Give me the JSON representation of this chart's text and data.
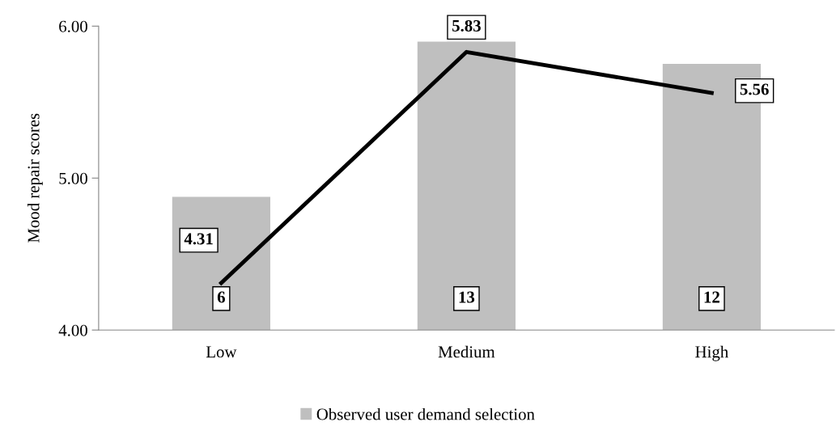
{
  "chart_data": {
    "type": "bar",
    "ylabel": "Mood repair scores",
    "categories": [
      "Low",
      "Medium",
      "High"
    ],
    "series": [
      {
        "name": "Observed user demand selection",
        "axis": "y2",
        "color": "#bfbfbf",
        "values": [
          6,
          13,
          12
        ]
      },
      {
        "type": "line",
        "color": "#000000",
        "values": [
          4.31,
          5.83,
          5.56
        ]
      }
    ],
    "ylim": [
      4,
      6
    ],
    "yticks": [
      {
        "value": 4,
        "label": "4.00"
      },
      {
        "value": 5,
        "label": "5.00"
      },
      {
        "value": 6,
        "label": "6.00"
      }
    ],
    "y2lim": [
      0,
      13.7
    ],
    "tick_labels": "xy",
    "data_labels": true,
    "grid": false,
    "legend": "bottom",
    "marker": "none",
    "line_style": "solid"
  }
}
